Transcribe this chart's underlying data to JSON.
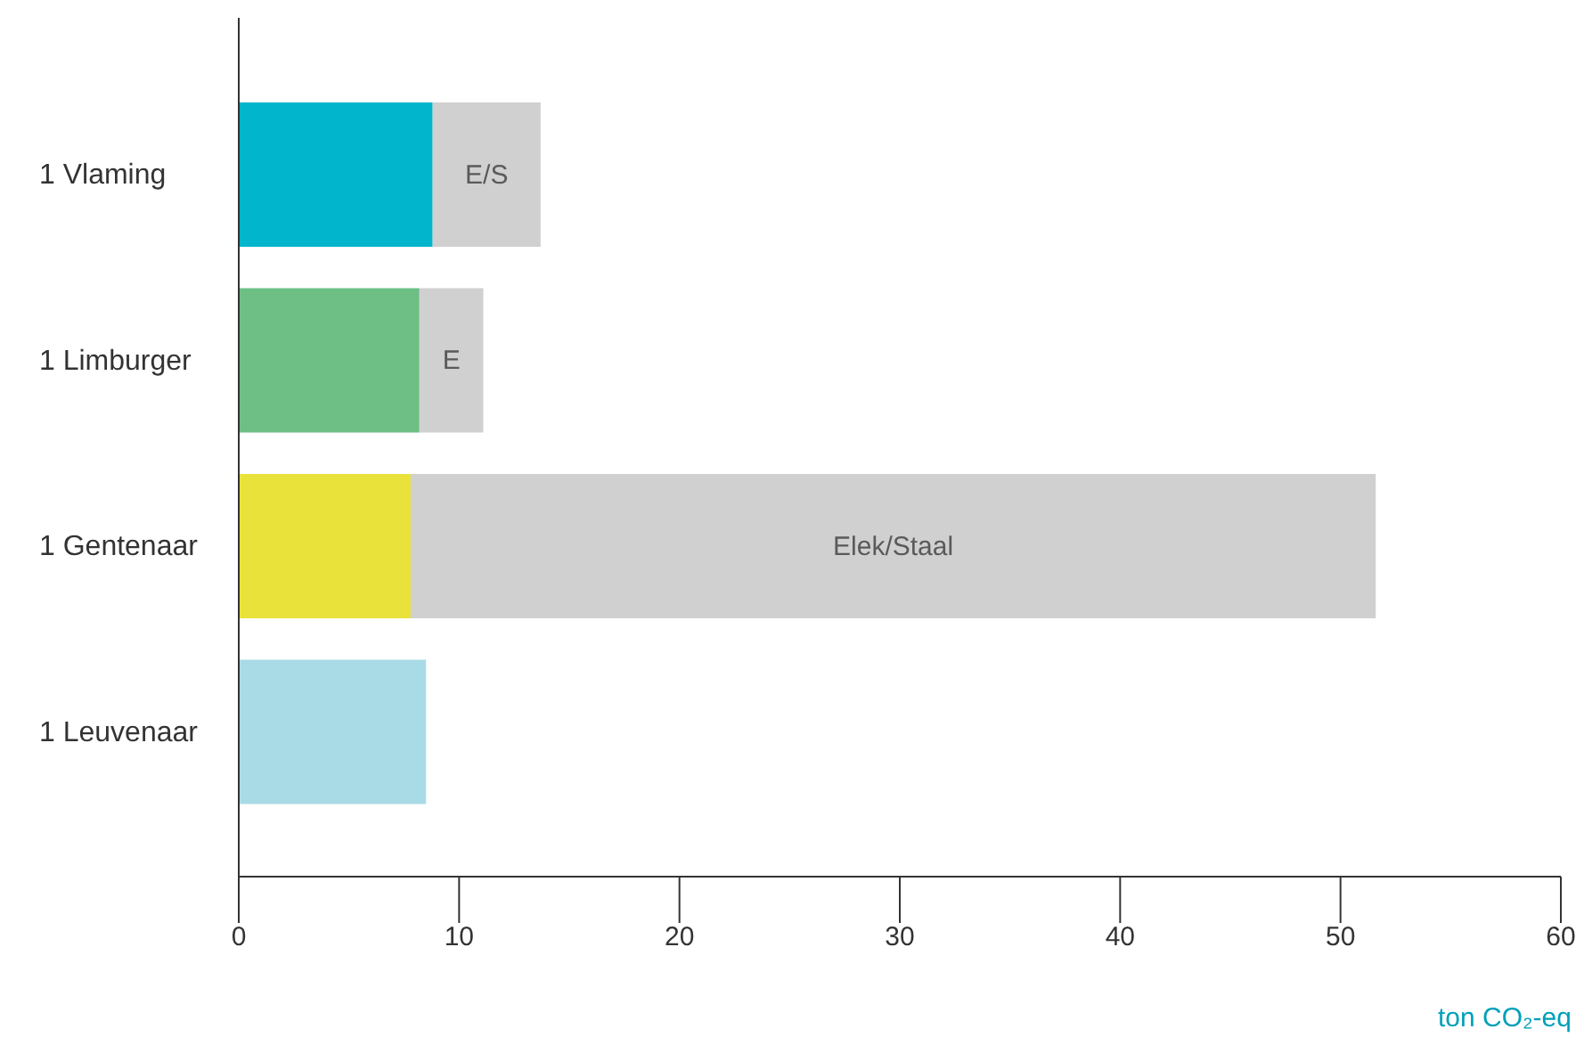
{
  "chart_data": {
    "type": "bar",
    "orientation": "horizontal",
    "stacked": true,
    "xlabel": "ton CO₂-eq",
    "categories": [
      "1 Vlaming",
      "1 Limburger",
      "1 Gentenaar",
      "1 Leuvenaar"
    ],
    "series": [
      {
        "colors": [
          "#00b5cc",
          "#6dbf85",
          "#e8e23a",
          "#a9dbe6"
        ],
        "values": [
          8.8,
          8.2,
          7.8,
          8.5
        ]
      },
      {
        "color": "#d0d0d0",
        "values": [
          4.9,
          2.9,
          43.8,
          null
        ],
        "value_labels": [
          "E/S",
          "E",
          "Elek/Staal",
          null
        ]
      }
    ],
    "xlim": [
      0,
      60
    ],
    "xticks": [
      0,
      10,
      20,
      30,
      40,
      50,
      60
    ],
    "grid": false,
    "legend": false
  }
}
